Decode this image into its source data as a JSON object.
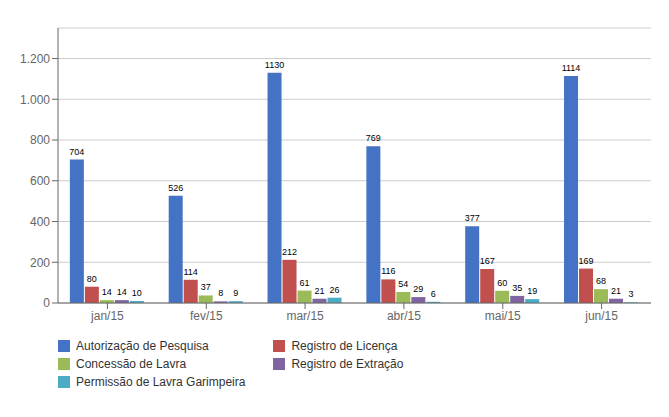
{
  "chart_data": {
    "type": "bar",
    "categories": [
      "jan/15",
      "fev/15",
      "mar/15",
      "abr/15",
      "mai/15",
      "jun/15"
    ],
    "series": [
      {
        "name": "Autorização de Pesquisa",
        "color": "#4472C4",
        "values": [
          704,
          526,
          1130,
          769,
          377,
          1114
        ]
      },
      {
        "name": "Registro de Licença",
        "color": "#C0504D",
        "values": [
          80,
          114,
          212,
          116,
          167,
          169
        ]
      },
      {
        "name": "Concessão de Lavra",
        "color": "#9BBB59",
        "values": [
          14,
          37,
          61,
          54,
          60,
          68
        ]
      },
      {
        "name": "Registro de Extração",
        "color": "#8064A2",
        "values": [
          14,
          8,
          21,
          29,
          35,
          21
        ]
      },
      {
        "name": "Permissão de Lavra Garimpeira",
        "color": "#4BACC6",
        "values": [
          10,
          9,
          26,
          6,
          19,
          3
        ]
      }
    ],
    "ylim": [
      0,
      1350
    ],
    "yticks": [
      0,
      200,
      400,
      600,
      800,
      {
        "value": 1000,
        "label": "1.000"
      },
      {
        "value": 1200,
        "label": "1.200"
      }
    ],
    "grid": true,
    "data_labels": true,
    "legend": "bottom"
  }
}
